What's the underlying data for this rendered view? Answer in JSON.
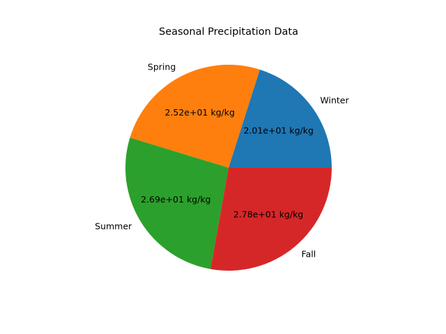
{
  "chart_data": {
    "type": "pie",
    "title": "Seasonal Precipitation Data",
    "categories": [
      "Winter",
      "Spring",
      "Summer",
      "Fall"
    ],
    "values": [
      20.1,
      25.2,
      26.9,
      27.8
    ],
    "value_labels": [
      "2.01e+01 kg/kg",
      "2.52e+01 kg/kg",
      "2.69e+01 kg/kg",
      "2.78e+01 kg/kg"
    ],
    "unit": "kg/kg",
    "colors": [
      "#1f77b4",
      "#ff7f0e",
      "#2ca02c",
      "#d62728"
    ],
    "start_angle_deg": 0,
    "direction": "counterclockwise",
    "legend": "none"
  }
}
